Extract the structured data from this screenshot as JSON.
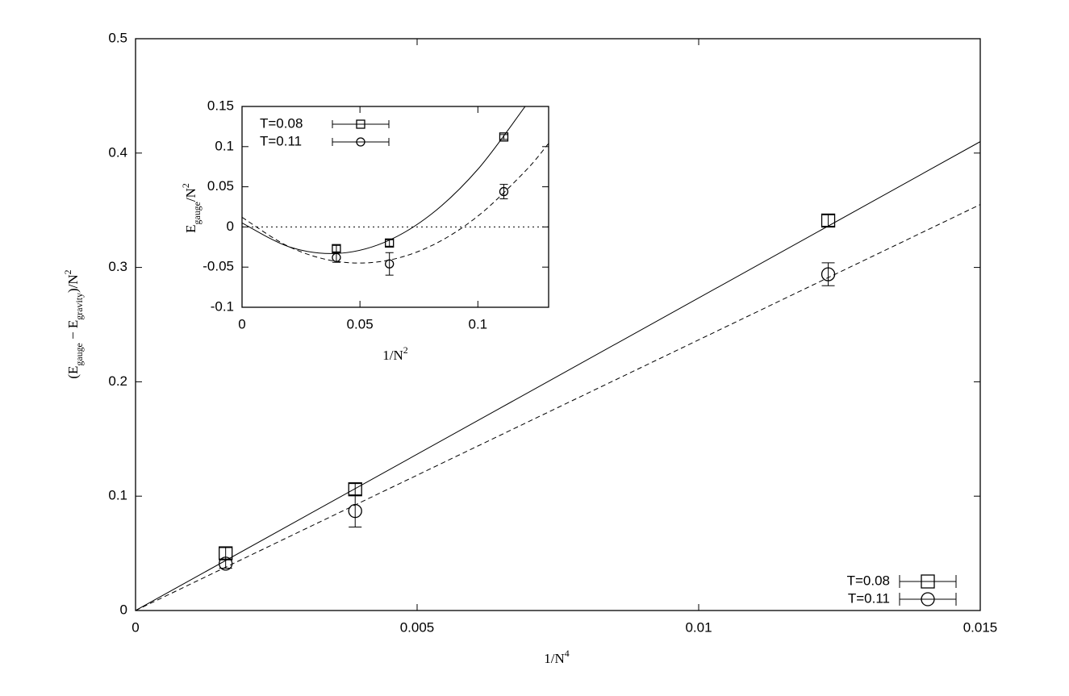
{
  "chart_data": [
    {
      "type": "scatter",
      "xlabel": [
        {
          "text": "1/N"
        },
        {
          "text": "4",
          "pos": "sup"
        }
      ],
      "ylabel": [
        {
          "text": "(E"
        },
        {
          "text": "gauge",
          "pos": "sub"
        },
        {
          "text": " − E"
        },
        {
          "text": "gravity",
          "pos": "sub"
        },
        {
          "text": ")/N"
        },
        {
          "text": "2",
          "pos": "sup"
        }
      ],
      "xlim": [
        0,
        0.015
      ],
      "xticks": [
        0,
        0.005,
        0.01,
        0.015
      ],
      "ylim": [
        0,
        0.5
      ],
      "yticks": [
        0,
        0.1,
        0.2,
        0.3,
        0.4,
        0.5
      ],
      "legend": "lower right",
      "series": [
        {
          "name": "T=0.08",
          "color": "#000000",
          "marker": "square",
          "x": [
            0.0016,
            0.0039,
            0.0123
          ],
          "values": [
            0.05,
            0.106,
            0.341
          ],
          "errors": [
            0.005,
            0.005,
            0.005
          ]
        },
        {
          "name": "T=0.11",
          "color": "#000000",
          "marker": "circle",
          "x": [
            0.0016,
            0.0039,
            0.0123
          ],
          "values": [
            0.041,
            0.087,
            0.294
          ],
          "errors": [
            0.004,
            0.014,
            0.01
          ]
        }
      ],
      "fits": [
        {
          "style": "solid",
          "x": [
            0,
            0.015
          ],
          "values": [
            0,
            0.41
          ]
        },
        {
          "style": "dashed",
          "x": [
            0,
            0.015
          ],
          "values": [
            0,
            0.355
          ]
        }
      ]
    },
    {
      "type": "scatter",
      "xlabel": [
        {
          "text": "1/N"
        },
        {
          "text": "2",
          "pos": "sup"
        }
      ],
      "ylabel": [
        {
          "text": "E"
        },
        {
          "text": "gauge",
          "pos": "sub"
        },
        {
          "text": "/N"
        },
        {
          "text": "2",
          "pos": "sup"
        }
      ],
      "xlim": [
        0,
        0.13
      ],
      "xticks": [
        0,
        0.05,
        0.1
      ],
      "ylim": [
        -0.1,
        0.15
      ],
      "yticks": [
        -0.1,
        -0.05,
        0,
        0.05,
        0.1,
        0.15
      ],
      "legend": "upper left",
      "hlines": [
        0
      ],
      "series": [
        {
          "name": "T=0.08",
          "color": "#000000",
          "marker": "square",
          "x": [
            0.04,
            0.0625,
            0.111
          ],
          "values": [
            -0.027,
            -0.02,
            0.112
          ],
          "errors": [
            0.004,
            0.004,
            0.003
          ]
        },
        {
          "name": "T=0.11",
          "color": "#000000",
          "marker": "circle",
          "x": [
            0.04,
            0.0625,
            0.111
          ],
          "values": [
            -0.038,
            -0.046,
            0.044
          ],
          "errors": [
            0.006,
            0.014,
            0.009
          ]
        }
      ],
      "fits": [
        {
          "style": "solid",
          "x": [
            0,
            0.02,
            0.04,
            0.06,
            0.08,
            0.1,
            0.12
          ],
          "values": [
            0.005,
            -0.0248,
            -0.033,
            -0.0196,
            0.0153,
            0.0718,
            0.1498
          ]
        },
        {
          "style": "dashed",
          "x": [
            0,
            0.02,
            0.04,
            0.06,
            0.08,
            0.1,
            0.12,
            0.13
          ],
          "values": [
            0.012,
            -0.0247,
            -0.0428,
            -0.0425,
            -0.0238,
            0.0135,
            0.0692,
            0.104
          ]
        }
      ]
    }
  ]
}
